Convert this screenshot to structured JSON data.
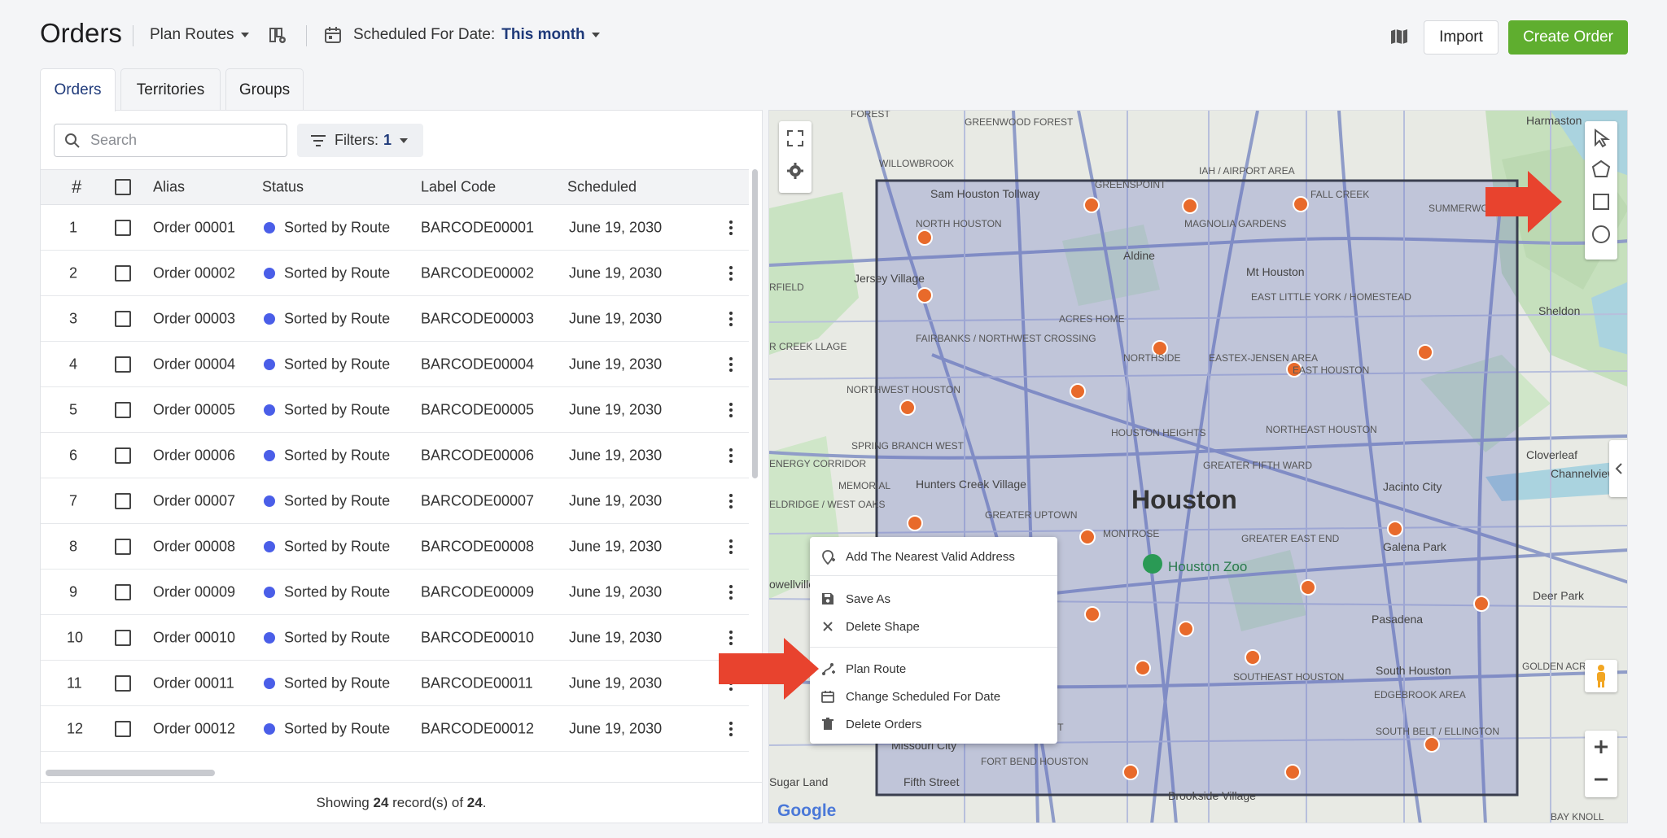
{
  "header": {
    "title": "Orders",
    "plan_routes_label": "Plan Routes",
    "date_label": "Scheduled For Date:",
    "date_value": "This month",
    "import_label": "Import",
    "create_order_label": "Create Order"
  },
  "tabs": [
    {
      "label": "Orders",
      "active": true
    },
    {
      "label": "Territories",
      "active": false
    },
    {
      "label": "Groups",
      "active": false
    }
  ],
  "search": {
    "placeholder": "Search"
  },
  "filters": {
    "label": "Filters:",
    "count": "1"
  },
  "table": {
    "columns": [
      "#",
      "",
      "Alias",
      "Status",
      "Label Code",
      "Scheduled"
    ],
    "rows": [
      {
        "num": "1",
        "alias": "Order 00001",
        "status": "Sorted by Route",
        "label_code": "BARCODE00001",
        "scheduled": "June 19, 2030"
      },
      {
        "num": "2",
        "alias": "Order 00002",
        "status": "Sorted by Route",
        "label_code": "BARCODE00002",
        "scheduled": "June 19, 2030"
      },
      {
        "num": "3",
        "alias": "Order 00003",
        "status": "Sorted by Route",
        "label_code": "BARCODE00003",
        "scheduled": "June 19, 2030"
      },
      {
        "num": "4",
        "alias": "Order 00004",
        "status": "Sorted by Route",
        "label_code": "BARCODE00004",
        "scheduled": "June 19, 2030"
      },
      {
        "num": "5",
        "alias": "Order 00005",
        "status": "Sorted by Route",
        "label_code": "BARCODE00005",
        "scheduled": "June 19, 2030"
      },
      {
        "num": "6",
        "alias": "Order 00006",
        "status": "Sorted by Route",
        "label_code": "BARCODE00006",
        "scheduled": "June 19, 2030"
      },
      {
        "num": "7",
        "alias": "Order 00007",
        "status": "Sorted by Route",
        "label_code": "BARCODE00007",
        "scheduled": "June 19, 2030"
      },
      {
        "num": "8",
        "alias": "Order 00008",
        "status": "Sorted by Route",
        "label_code": "BARCODE00008",
        "scheduled": "June 19, 2030"
      },
      {
        "num": "9",
        "alias": "Order 00009",
        "status": "Sorted by Route",
        "label_code": "BARCODE00009",
        "scheduled": "June 19, 2030"
      },
      {
        "num": "10",
        "alias": "Order 00010",
        "status": "Sorted by Route",
        "label_code": "BARCODE00010",
        "scheduled": "June 19, 2030"
      },
      {
        "num": "11",
        "alias": "Order 00011",
        "status": "Sorted by Route",
        "label_code": "BARCODE00011",
        "scheduled": "June 19, 2030"
      },
      {
        "num": "12",
        "alias": "Order 00012",
        "status": "Sorted by Route",
        "label_code": "BARCODE00012",
        "scheduled": "June 19, 2030"
      }
    ]
  },
  "footer": {
    "prefix": "Showing",
    "shown": "24",
    "middle": "record(s) of",
    "total": "24",
    "suffix": "."
  },
  "map": {
    "city": "Houston",
    "zoo": "Houston Zoo",
    "labels": [
      "FOREST",
      "GREENWOOD FOREST",
      "WILLOWBROOK",
      "Sam Houston Tollway",
      "GREENSPOINT",
      "IAH / AIRPORT AREA",
      "FALL CREEK",
      "SUMMERWOOD",
      "Harmaston",
      "NORTH HOUSTON",
      "MAGNOLIA GARDENS",
      "Aldine",
      "Jersey Village",
      "Mt Houston",
      "EAST LITTLE YORK / HOMESTEAD",
      "Sheldon",
      "ACRES HOME",
      "FAIRBANKS / NORTHWEST CROSSING",
      "NORTHSIDE",
      "EASTEX-JENSEN AREA",
      "EAST HOUSTON",
      "NORTHWEST HOUSTON",
      "HOUSTON HEIGHTS",
      "NORTHEAST HOUSTON",
      "SPRING BRANCH WEST",
      "Cloverleaf",
      "Channelview",
      "MEMORIAL",
      "Hunters Creek Village",
      "GREATER FIFTH WARD",
      "Jacinto City",
      "GREATER UPTOWN",
      "MONTROSE",
      "GREATER EAST END",
      "Galena Park",
      "Deer Park",
      "Pasadena",
      "SOUTHEAST HOUSTON",
      "South Houston",
      "GOLDEN ACRES",
      "EDGEBROOK AREA",
      "Missouri City",
      "CENTRAL SOUTHWEST",
      "FORT BEND HOUSTON",
      "SOUTH BELT / ELLINGTON",
      "Sugar Land",
      "Fifth Street",
      "Brookside Village",
      "BAY KNOLL",
      "ENERGY CORRIDOR",
      "ELDRIDGE / WEST OAKS",
      "RFIELD",
      "R CREEK LLAGE",
      "owellville"
    ]
  },
  "context_menu": {
    "items": [
      {
        "label": "Add The Nearest Valid Address",
        "icon": "location-add-icon"
      },
      {
        "label": "Save As",
        "icon": "save-icon"
      },
      {
        "label": "Delete Shape",
        "icon": "close-icon"
      },
      {
        "label": "Plan Route",
        "icon": "route-icon"
      },
      {
        "label": "Change Scheduled For Date",
        "icon": "calendar-icon"
      },
      {
        "label": "Delete Orders",
        "icon": "trash-icon"
      }
    ]
  },
  "colors": {
    "accent_green": "#5fae2f",
    "link_blue": "#1f3a7a",
    "status_dot": "#4a5ee8",
    "marker_orange": "#e86a2b",
    "arrow_red": "#e8432e"
  }
}
